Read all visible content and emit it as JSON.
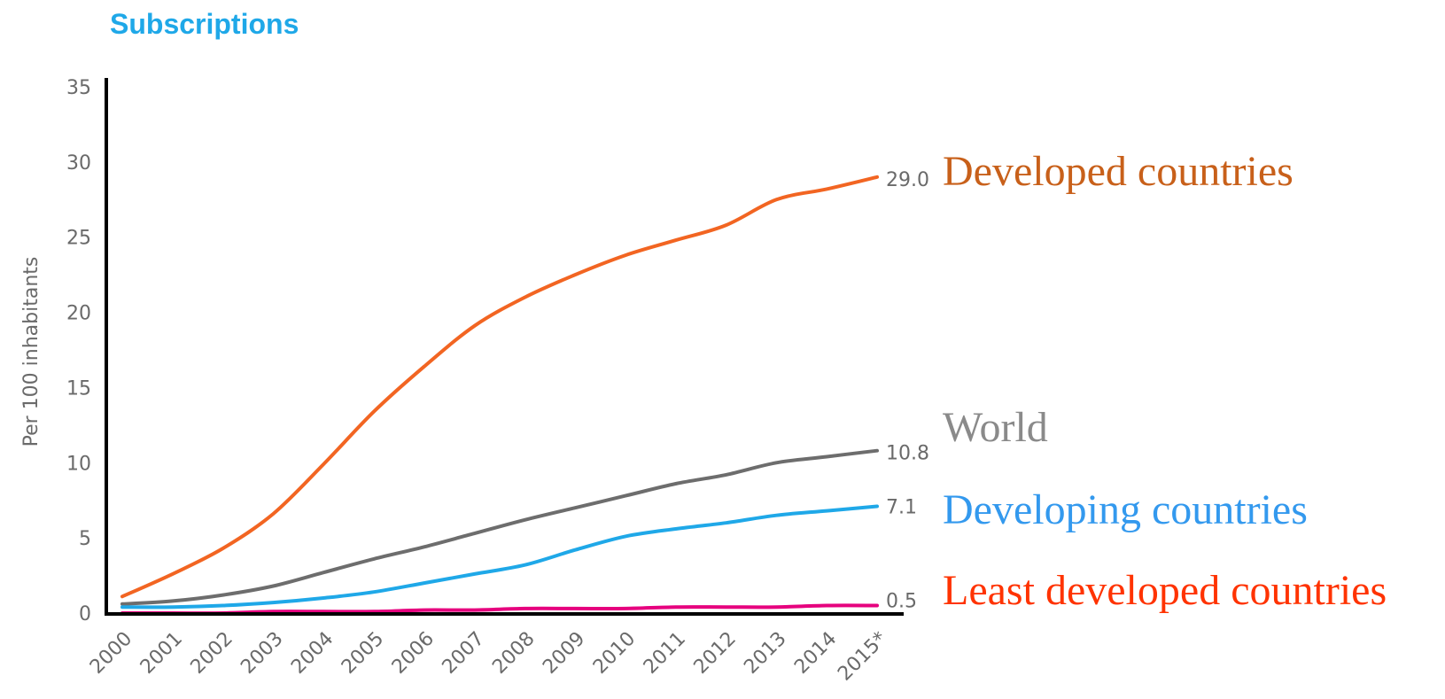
{
  "chart_data": {
    "type": "line",
    "title": "Subscriptions",
    "ylabel": "Per 100 inhabitants",
    "xlabel": "",
    "categories": [
      "2000",
      "2001",
      "2002",
      "2003",
      "2004",
      "2005",
      "2006",
      "2007",
      "2008",
      "2009",
      "2010",
      "2011",
      "2012",
      "2013",
      "2014",
      "2015*"
    ],
    "ylim": [
      0,
      35
    ],
    "yticks": [
      0,
      5,
      10,
      15,
      20,
      25,
      30,
      35
    ],
    "grid": false,
    "legend_position": "right",
    "series": [
      {
        "name": "Developed countries",
        "color": "#f26522",
        "label_color": "#c8601a",
        "end_label": "29.0",
        "values": [
          1.1,
          2.6,
          4.3,
          6.6,
          9.9,
          13.4,
          16.4,
          19.1,
          21.0,
          22.5,
          23.8,
          24.8,
          25.8,
          27.5,
          28.2,
          29.0
        ]
      },
      {
        "name": "World",
        "color": "#6d6d6d",
        "label_color": "#8a8a8a",
        "end_label": "10.8",
        "values": [
          0.6,
          0.8,
          1.2,
          1.8,
          2.7,
          3.6,
          4.4,
          5.3,
          6.2,
          7.0,
          7.8,
          8.6,
          9.2,
          10.0,
          10.4,
          10.8
        ]
      },
      {
        "name": "Developing countries",
        "color": "#1fa8e8",
        "label_color": "#3399ee",
        "end_label": "7.1",
        "values": [
          0.4,
          0.4,
          0.5,
          0.7,
          1.0,
          1.4,
          2.0,
          2.6,
          3.2,
          4.2,
          5.1,
          5.6,
          6.0,
          6.5,
          6.8,
          7.1
        ]
      },
      {
        "name": "Least developed countries",
        "color": "#e6007e",
        "label_color": "#ff3300",
        "end_label": "0.5",
        "values": [
          0.0,
          0.0,
          0.0,
          0.1,
          0.1,
          0.1,
          0.2,
          0.2,
          0.3,
          0.3,
          0.3,
          0.4,
          0.4,
          0.4,
          0.5,
          0.5
        ]
      }
    ]
  }
}
